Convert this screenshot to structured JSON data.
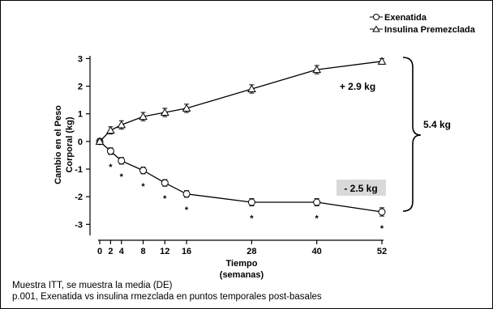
{
  "chart_data": {
    "type": "line",
    "xlabel": "Tiempo",
    "xlabel_sub": "(semanas)",
    "ylabel_line1": "Cambio en el Peso",
    "ylabel_line2": "Corporal (kg)",
    "x_ticks": [
      0,
      2,
      4,
      8,
      12,
      16,
      28,
      40,
      52
    ],
    "y_ticks": [
      3,
      2,
      1,
      0,
      -1,
      -2,
      -3
    ],
    "xlim": [
      0,
      52
    ],
    "ylim": [
      -3.4,
      3.1
    ],
    "grid": false,
    "legend_position": "top-right",
    "series": [
      {
        "name": "Exenatida",
        "marker": "circle",
        "x": [
          0,
          2,
          4,
          8,
          12,
          16,
          28,
          40,
          52
        ],
        "y": [
          0,
          -0.35,
          -0.7,
          -1.05,
          -1.5,
          -1.9,
          -2.2,
          -2.2,
          -2.55
        ],
        "err": [
          0.1,
          0.12,
          0.12,
          0.12,
          0.12,
          0.12,
          0.13,
          0.13,
          0.15
        ]
      },
      {
        "name": "Insulina Premezclada",
        "marker": "triangle",
        "x": [
          0,
          2,
          4,
          8,
          12,
          16,
          28,
          40,
          52
        ],
        "y": [
          0,
          0.4,
          0.6,
          0.9,
          1.05,
          1.2,
          1.9,
          2.6,
          2.9
        ],
        "err": [
          0.05,
          0.13,
          0.15,
          0.15,
          0.15,
          0.15,
          0.15,
          0.15,
          0.1
        ]
      }
    ],
    "significance_marker": "*",
    "significance_x": [
      2,
      4,
      8,
      12,
      16,
      28,
      40,
      52
    ],
    "annotations": {
      "insulin_change": "+ 2.9 kg",
      "exenatide_change": "- 2.5 kg",
      "difference": "5.4 kg"
    }
  },
  "footnotes": {
    "line1": "Muestra ITT, se muestra la media (DE)",
    "line2": "p.001, Exenatida vs insulina rmezclada en puntos temporales post-basales"
  }
}
